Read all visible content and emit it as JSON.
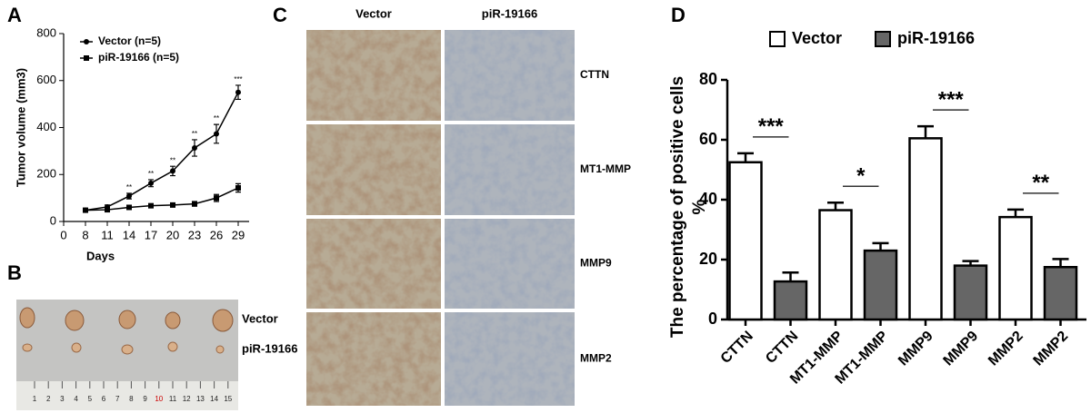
{
  "chart_data": [
    {
      "type": "line",
      "panel_label": "A",
      "ylabel": "Tumor volume (mm3)",
      "xlabel": "Days",
      "categories": [
        "0",
        "8",
        "11",
        "14",
        "17",
        "20",
        "23",
        "26",
        "29"
      ],
      "series": [
        {
          "name": "Vector (n=5)",
          "color": "#000000",
          "marker": "circle",
          "values": [
            null,
            48,
            62,
            108,
            163,
            215,
            313,
            373,
            550
          ],
          "errors": [
            null,
            5,
            8,
            12,
            15,
            20,
            35,
            40,
            30
          ],
          "significance": [
            null,
            null,
            null,
            "**",
            "**",
            "**",
            "**",
            "**",
            "***"
          ]
        },
        {
          "name": "piR-19166 (n=5)",
          "color": "#000000",
          "marker": "square",
          "values": [
            null,
            48,
            50,
            60,
            67,
            70,
            75,
            100,
            143
          ],
          "errors": [
            null,
            4,
            5,
            5,
            8,
            8,
            10,
            15,
            18
          ]
        }
      ],
      "ylim": [
        0,
        800
      ],
      "yticks": [
        0,
        200,
        400,
        600,
        800
      ],
      "legend": "top-left"
    },
    {
      "type": "bar",
      "panel_label": "D",
      "ylabel": "The percentage of positive cells",
      "ylabel_unit": "%",
      "categories": [
        "CTTN",
        "CTTN",
        "MT1-MMP",
        "MT1-MMP",
        "MMP9",
        "MMP9",
        "MMP2",
        "MMP2"
      ],
      "series": [
        {
          "name": "Vector",
          "color": "#ffffff",
          "values": [
            52.5,
            null,
            36.5,
            null,
            60.5,
            null,
            34.2,
            null
          ],
          "errors": [
            3,
            null,
            2.5,
            null,
            4,
            null,
            2.5,
            null
          ]
        },
        {
          "name": "piR-19166",
          "color": "#666666",
          "values": [
            null,
            12.7,
            null,
            23,
            null,
            18,
            null,
            17.5
          ],
          "errors": [
            null,
            3,
            null,
            2.5,
            null,
            1.5,
            null,
            2.7
          ]
        }
      ],
      "significance": [
        "***",
        "*",
        "***",
        "**"
      ],
      "ylim": [
        0,
        80
      ],
      "yticks": [
        0,
        20,
        40,
        60,
        80
      ],
      "legend": "top"
    }
  ],
  "panel_b": {
    "panel_label": "B",
    "row_labels": [
      "Vector",
      "piR-19166"
    ],
    "ruler_labels": [
      1,
      2,
      3,
      4,
      5,
      6,
      7,
      8,
      9,
      10,
      11,
      12,
      13,
      14,
      15
    ]
  },
  "panel_c": {
    "panel_label": "C",
    "column_labels": [
      "Vector",
      "piR-19166"
    ],
    "row_labels": [
      "CTTN",
      "MT1-MMP",
      "MMP9",
      "MMP2"
    ]
  }
}
